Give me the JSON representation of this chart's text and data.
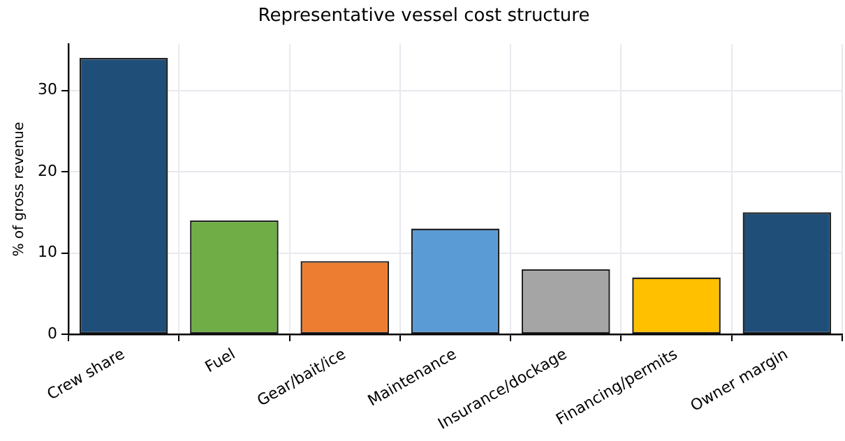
{
  "chart_data": {
    "type": "bar",
    "title": "Representative vessel cost structure",
    "ylabel": "% of gross revenue",
    "categories": [
      "Crew share",
      "Fuel",
      "Gear/bait/ice",
      "Maintenance",
      "Insurance/dockage",
      "Financing/permits",
      "Owner margin"
    ],
    "values": [
      34,
      14,
      9,
      13,
      8,
      7,
      15
    ],
    "colors": [
      "#1f4e79",
      "#70ad47",
      "#ed7d31",
      "#5b9bd5",
      "#a5a5a5",
      "#ffc000",
      "#1f4e79"
    ],
    "ylim": [
      0,
      35.7
    ],
    "yticks": [
      0,
      10,
      20,
      30
    ],
    "grid": true,
    "legend": false
  }
}
